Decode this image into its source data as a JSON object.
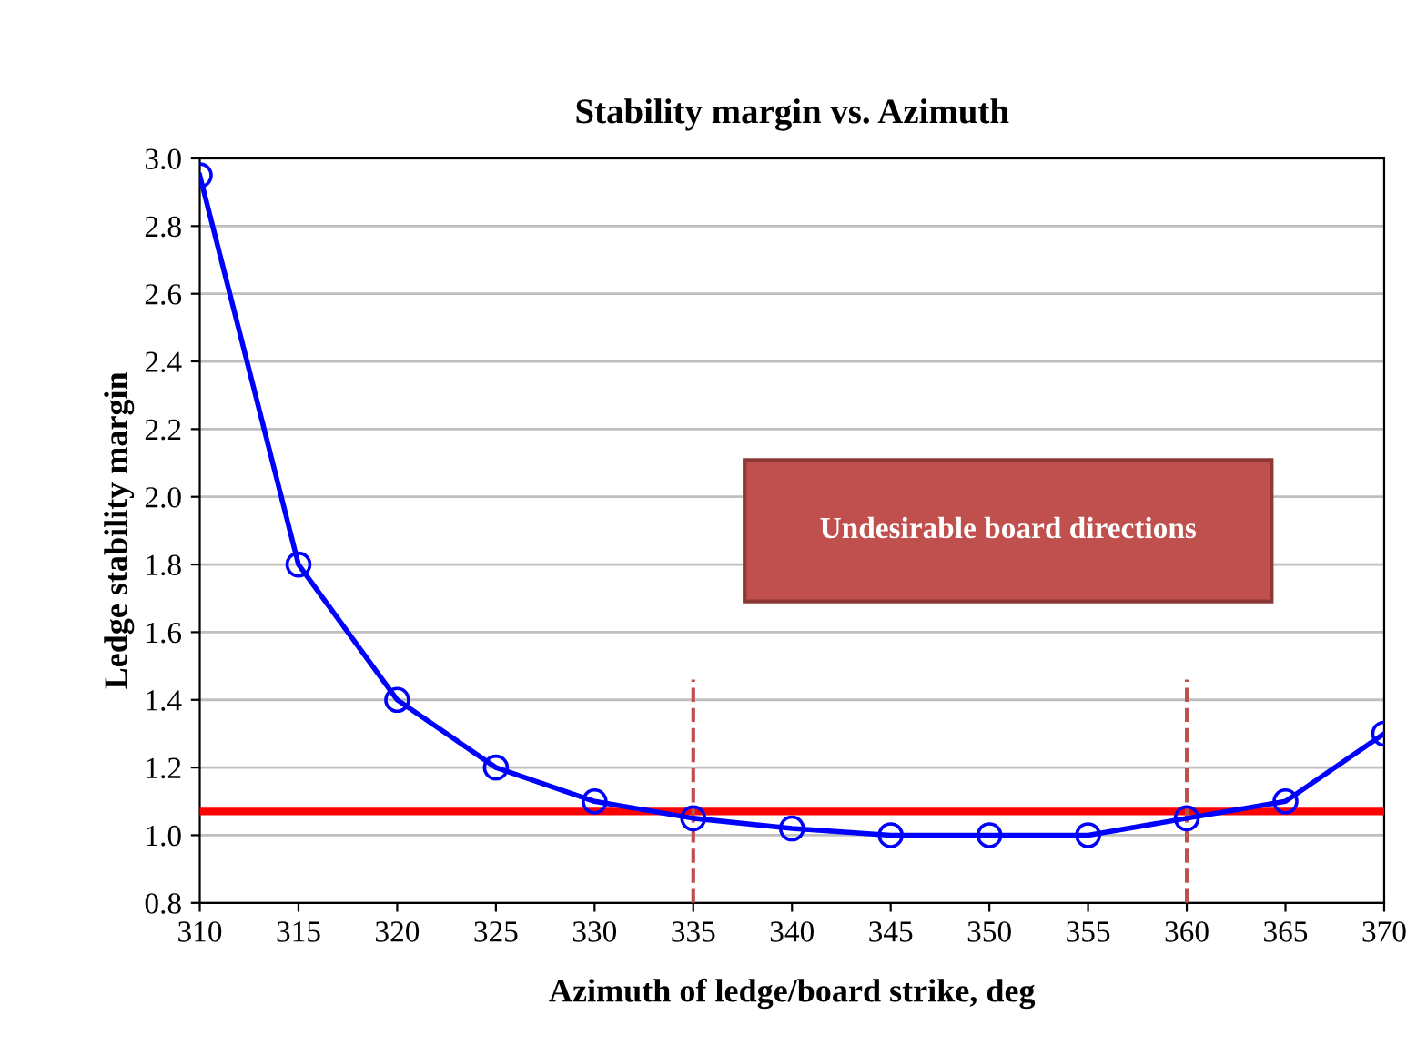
{
  "chart_data": {
    "type": "line",
    "title": "Stability margin vs. Azimuth",
    "xlabel": "Azimuth of ledge/board strike, deg",
    "ylabel": "Ledge stability margin",
    "x": [
      310,
      315,
      320,
      325,
      330,
      335,
      340,
      345,
      350,
      355,
      360,
      365,
      370
    ],
    "series": [
      {
        "color": "#0000ff",
        "values": [
          2.95,
          1.8,
          1.4,
          1.2,
          1.1,
          1.05,
          1.02,
          1.0,
          1.0,
          1.0,
          1.05,
          1.1,
          1.3
        ]
      }
    ],
    "marker": "circle",
    "line_style": "solid",
    "xlim": [
      310,
      370
    ],
    "xticks": [
      310,
      315,
      320,
      325,
      330,
      335,
      340,
      345,
      350,
      355,
      360,
      365,
      370
    ],
    "ylim": [
      0.8,
      3.0
    ],
    "yticks": [
      {
        "value": 0.8,
        "label": "0.8"
      },
      {
        "value": 1.0,
        "label": "1.0"
      },
      {
        "value": 1.2,
        "label": "1.2"
      },
      {
        "value": 1.4,
        "label": "1.4"
      },
      {
        "value": 1.6,
        "label": "1.6"
      },
      {
        "value": 1.8,
        "label": "1.8"
      },
      {
        "value": 2.0,
        "label": "2.0"
      },
      {
        "value": 2.2,
        "label": "2.2"
      },
      {
        "value": 2.4,
        "label": "2.4"
      },
      {
        "value": 2.6,
        "label": "2.6"
      },
      {
        "value": 2.8,
        "label": "2.8"
      },
      {
        "value": 3.0,
        "label": "3.0"
      }
    ],
    "grid": "y",
    "ref_lines": [
      {
        "axis": "y",
        "value": 1.07,
        "color": "#ff0000",
        "line_style": "solid"
      },
      {
        "axis": "x",
        "value": 335,
        "color": "#c0504d",
        "line_style": "dashed"
      },
      {
        "axis": "x",
        "value": 360,
        "color": "#c0504d",
        "line_style": "dashed"
      }
    ],
    "annotations": [
      "Undesirable board directions"
    ]
  }
}
